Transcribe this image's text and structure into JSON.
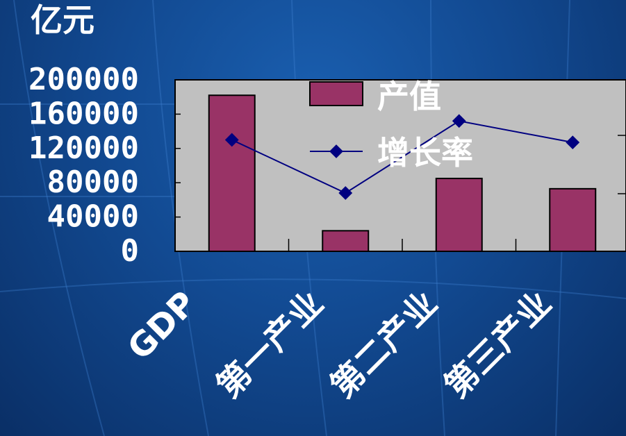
{
  "chart_data": {
    "type": "bar",
    "unit_label": "亿元",
    "categories": [
      "GDP",
      "第一产业",
      "第二产业",
      "第三产业"
    ],
    "ylim": [
      0,
      200000
    ],
    "y_ticks": [
      "0",
      "40000",
      "80000",
      "120000",
      "160000",
      "200000"
    ],
    "y_tick_values": [
      0,
      40000,
      80000,
      120000,
      160000,
      200000
    ],
    "series": [
      {
        "name": "产值",
        "type": "bar",
        "color": "#993366",
        "values": [
          182000,
          24000,
          85000,
          73000
        ]
      },
      {
        "name": "增长率",
        "type": "line",
        "color": "#000080",
        "values": [
          130000,
          68000,
          152000,
          127000
        ]
      }
    ],
    "grid": false,
    "legend_position": "top-center",
    "colors": {
      "plot_background": "#c0c0c0",
      "text": "#ffffff"
    }
  }
}
